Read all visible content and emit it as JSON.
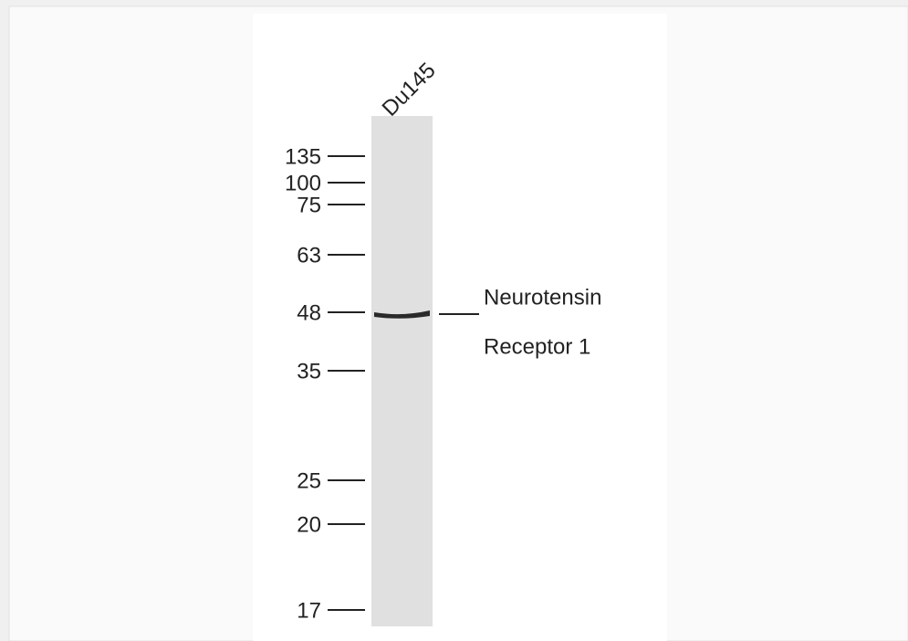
{
  "lane": {
    "label": "Du145"
  },
  "markers": [
    {
      "label": "135"
    },
    {
      "label": "100"
    },
    {
      "label": "75"
    },
    {
      "label": "63"
    },
    {
      "label": "48"
    },
    {
      "label": "35"
    },
    {
      "label": "25"
    },
    {
      "label": "20"
    },
    {
      "label": "17"
    }
  ],
  "band": {
    "label_lines": [
      "Neurotensin",
      "Receptor 1"
    ]
  }
}
